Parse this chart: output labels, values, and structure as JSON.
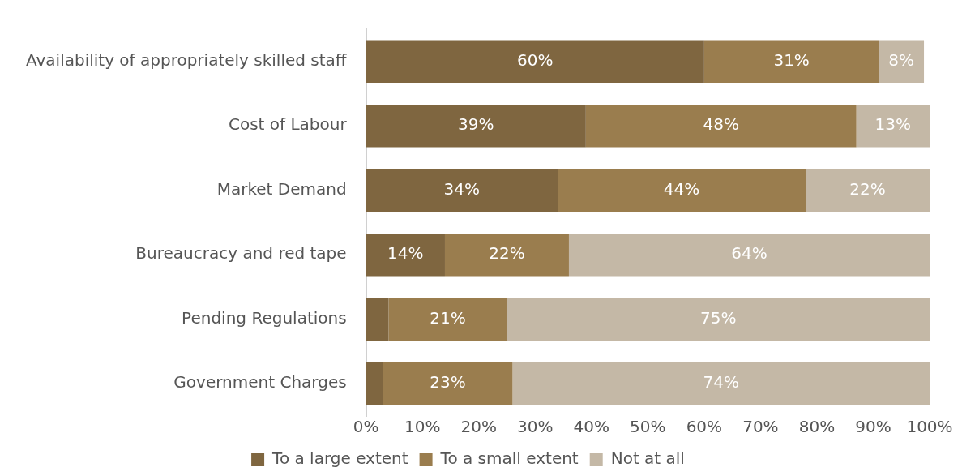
{
  "chart_data": {
    "type": "bar",
    "orientation": "horizontal",
    "stacked": true,
    "categories": [
      "Availability of appropriately skilled staff",
      "Cost of Labour",
      "Market Demand",
      "Bureaucracy and red tape",
      "Pending Regulations",
      "Government Charges"
    ],
    "series": [
      {
        "name": "To a large extent",
        "color": "#7f6640",
        "values": [
          60,
          39,
          34,
          14,
          4,
          3
        ],
        "value_labels": [
          "60%",
          "39%",
          "34%",
          "14%",
          null,
          null
        ]
      },
      {
        "name": "To a small extent",
        "color": "#9a7d4e",
        "values": [
          31,
          48,
          44,
          22,
          21,
          23
        ],
        "value_labels": [
          "31%",
          "48%",
          "44%",
          "22%",
          "21%",
          "23%"
        ]
      },
      {
        "name": "Not at all",
        "color": "#c4b8a6",
        "values": [
          8,
          13,
          22,
          64,
          75,
          74
        ],
        "value_labels": [
          "8%",
          "13%",
          "22%",
          "64%",
          "75%",
          "74%"
        ]
      }
    ],
    "xlim": [
      0,
      100
    ],
    "xticks": [
      {
        "value": 0,
        "label": "0%"
      },
      {
        "value": 10,
        "label": "10%"
      },
      {
        "value": 20,
        "label": "20%"
      },
      {
        "value": 30,
        "label": "30%"
      },
      {
        "value": 40,
        "label": "40%"
      },
      {
        "value": 50,
        "label": "50%"
      },
      {
        "value": 60,
        "label": "60%"
      },
      {
        "value": 70,
        "label": "70%"
      },
      {
        "value": 80,
        "label": "80%"
      },
      {
        "value": 90,
        "label": "90%"
      },
      {
        "value": 100,
        "label": "100%"
      }
    ],
    "grid": false,
    "legend": "bottom"
  }
}
